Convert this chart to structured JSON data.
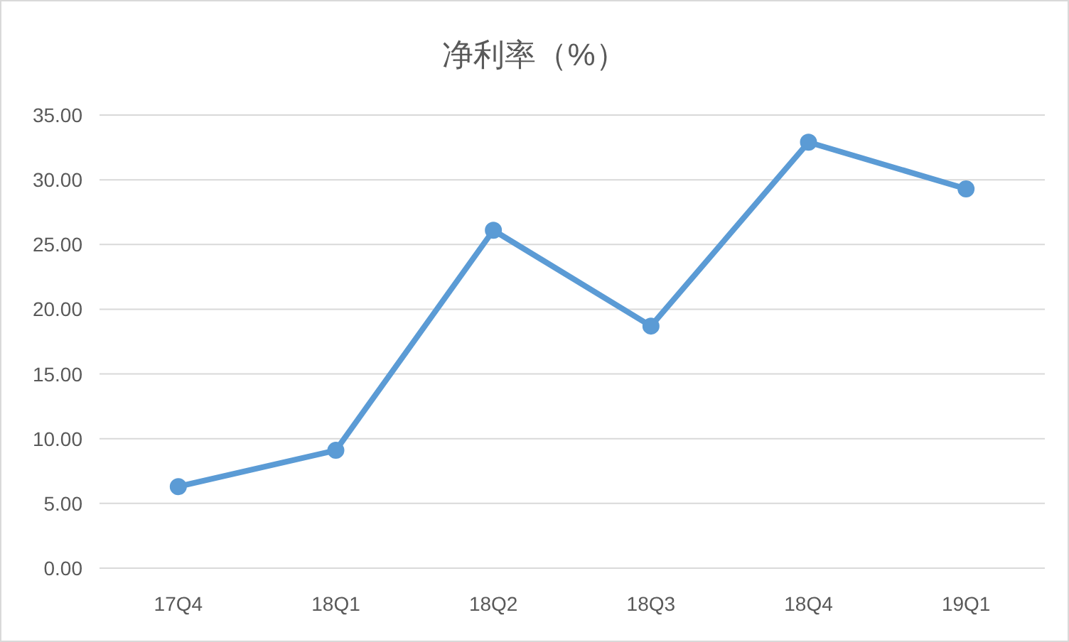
{
  "chart_data": {
    "type": "line",
    "title": "净利率（%）",
    "categories": [
      "17Q4",
      "18Q1",
      "18Q2",
      "18Q3",
      "18Q4",
      "19Q1"
    ],
    "series": [
      {
        "color": "#5b9bd5",
        "values": [
          6.3,
          9.1,
          26.1,
          18.7,
          32.9,
          29.3
        ]
      }
    ],
    "ylim": [
      0,
      35
    ],
    "yticks": [
      {
        "value": 0,
        "label": "0.00"
      },
      {
        "value": 5,
        "label": "5.00"
      },
      {
        "value": 10,
        "label": "10.00"
      },
      {
        "value": 15,
        "label": "15.00"
      },
      {
        "value": 20,
        "label": "20.00"
      },
      {
        "value": 25,
        "label": "25.00"
      },
      {
        "value": 30,
        "label": "30.00"
      },
      {
        "value": 35,
        "label": "35.00"
      }
    ],
    "grid": "y",
    "marker": "circle",
    "line_style": "solid"
  }
}
